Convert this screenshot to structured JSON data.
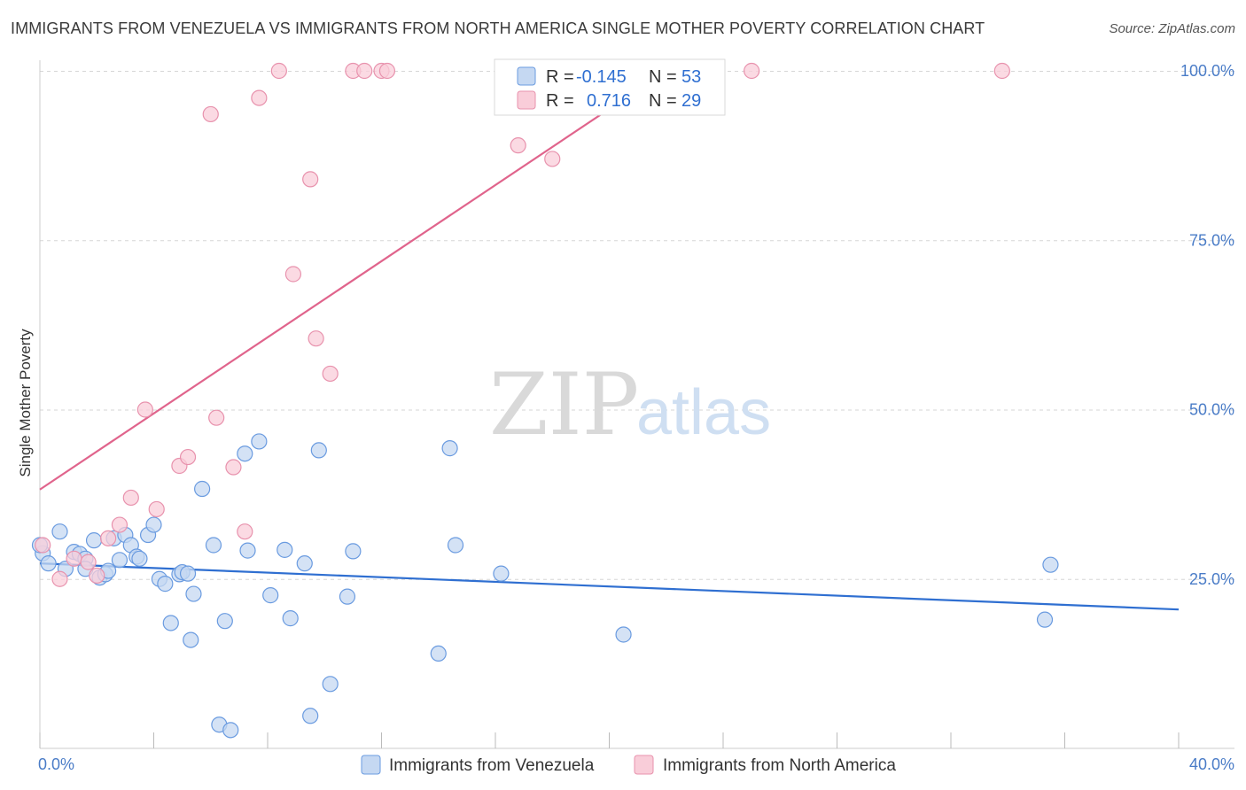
{
  "title": "IMMIGRANTS FROM VENEZUELA VS IMMIGRANTS FROM NORTH AMERICA SINGLE MOTHER POVERTY CORRELATION CHART",
  "source": "Source: ZipAtlas.com",
  "watermark": {
    "zip": "ZIP",
    "atlas": "atlas"
  },
  "colors": {
    "blue_fill": "#c5d8f2",
    "blue_stroke": "#6a9be0",
    "blue_line": "#2f6fd1",
    "pink_fill": "#f9cdd9",
    "pink_stroke": "#e892ad",
    "pink_line": "#e0648c",
    "grid": "#d6d6d6",
    "axis_text": "#4a7cc7"
  },
  "chart_data": {
    "type": "scatter",
    "xlabel": "",
    "ylabel": "Single Mother Poverty",
    "xlim": [
      0,
      40
    ],
    "ylim": [
      0,
      100
    ],
    "x_tick_labels": [
      "0.0%",
      "40.0%"
    ],
    "y_ticks": [
      25,
      50,
      75,
      100
    ],
    "y_tick_labels": [
      "25.0%",
      "50.0%",
      "75.0%",
      "100.0%"
    ],
    "grid": true,
    "legend_top": {
      "placement": "top-center",
      "rows": [
        {
          "r_label": "R =",
          "r_value": "-0.145",
          "n_label": "N =",
          "n_value": "53"
        },
        {
          "r_label": "R =",
          "r_value": "0.716",
          "n_label": "N =",
          "n_value": "29"
        }
      ]
    },
    "series": [
      {
        "name": "Immigrants from Venezuela",
        "color": "blue",
        "trend": {
          "x": [
            0,
            40
          ],
          "y": [
            27.3,
            20.5
          ]
        },
        "points": [
          [
            0.1,
            28.8
          ],
          [
            0.3,
            27.3
          ],
          [
            0.7,
            32.0
          ],
          [
            0.9,
            26.5
          ],
          [
            1.2,
            29.0
          ],
          [
            1.4,
            28.7
          ],
          [
            1.6,
            28.0
          ],
          [
            1.6,
            26.5
          ],
          [
            1.9,
            30.7
          ],
          [
            2.1,
            25.2
          ],
          [
            2.3,
            25.7
          ],
          [
            2.4,
            26.2
          ],
          [
            2.6,
            31.0
          ],
          [
            2.8,
            27.8
          ],
          [
            3.0,
            31.5
          ],
          [
            3.2,
            30.0
          ],
          [
            3.4,
            28.3
          ],
          [
            3.5,
            28.0
          ],
          [
            3.8,
            31.5
          ],
          [
            4.0,
            33.0
          ],
          [
            4.2,
            25.0
          ],
          [
            4.4,
            24.3
          ],
          [
            4.6,
            18.5
          ],
          [
            4.9,
            25.7
          ],
          [
            5.0,
            26.0
          ],
          [
            5.2,
            25.8
          ],
          [
            5.3,
            16.0
          ],
          [
            5.4,
            22.8
          ],
          [
            5.7,
            38.3
          ],
          [
            6.1,
            30.0
          ],
          [
            6.3,
            3.5
          ],
          [
            6.5,
            18.8
          ],
          [
            6.7,
            2.7
          ],
          [
            7.2,
            43.5
          ],
          [
            7.3,
            29.2
          ],
          [
            7.7,
            45.3
          ],
          [
            8.1,
            22.6
          ],
          [
            8.6,
            29.3
          ],
          [
            8.8,
            19.2
          ],
          [
            9.3,
            27.3
          ],
          [
            9.5,
            4.8
          ],
          [
            9.8,
            44.0
          ],
          [
            10.2,
            9.5
          ],
          [
            10.8,
            22.4
          ],
          [
            11.0,
            29.1
          ],
          [
            14.0,
            14.0
          ],
          [
            14.4,
            44.3
          ],
          [
            14.6,
            30.0
          ],
          [
            16.2,
            25.8
          ],
          [
            20.5,
            16.8
          ],
          [
            35.3,
            19.0
          ],
          [
            35.5,
            27.1
          ],
          [
            0.0,
            30.0
          ]
        ]
      },
      {
        "name": "Immigrants from North America",
        "color": "pink",
        "trend": {
          "x": [
            0,
            22
          ],
          "y": [
            38.2,
            100
          ]
        },
        "points": [
          [
            0.1,
            30.0
          ],
          [
            0.7,
            25.0
          ],
          [
            1.2,
            28.0
          ],
          [
            1.7,
            27.5
          ],
          [
            2.0,
            25.5
          ],
          [
            2.4,
            31.0
          ],
          [
            2.8,
            33.0
          ],
          [
            3.2,
            37.0
          ],
          [
            3.7,
            50.0
          ],
          [
            4.1,
            35.3
          ],
          [
            4.9,
            41.7
          ],
          [
            5.2,
            43.0
          ],
          [
            6.0,
            93.6
          ],
          [
            6.2,
            48.8
          ],
          [
            6.8,
            41.5
          ],
          [
            7.2,
            32.0
          ],
          [
            7.7,
            96.0
          ],
          [
            8.4,
            100
          ],
          [
            8.9,
            70.0
          ],
          [
            9.5,
            84.0
          ],
          [
            9.7,
            60.5
          ],
          [
            10.2,
            55.3
          ],
          [
            11.0,
            100
          ],
          [
            11.4,
            100
          ],
          [
            12.0,
            100
          ],
          [
            12.2,
            100
          ],
          [
            16.8,
            89.0
          ],
          [
            18.0,
            87.0
          ],
          [
            25.0,
            100
          ]
        ],
        "extra_points": [
          [
            33.8,
            100
          ]
        ]
      }
    ],
    "legend_bottom": {
      "placement": "bottom-center",
      "items": [
        "Immigrants from Venezuela",
        "Immigrants from North America"
      ]
    }
  }
}
